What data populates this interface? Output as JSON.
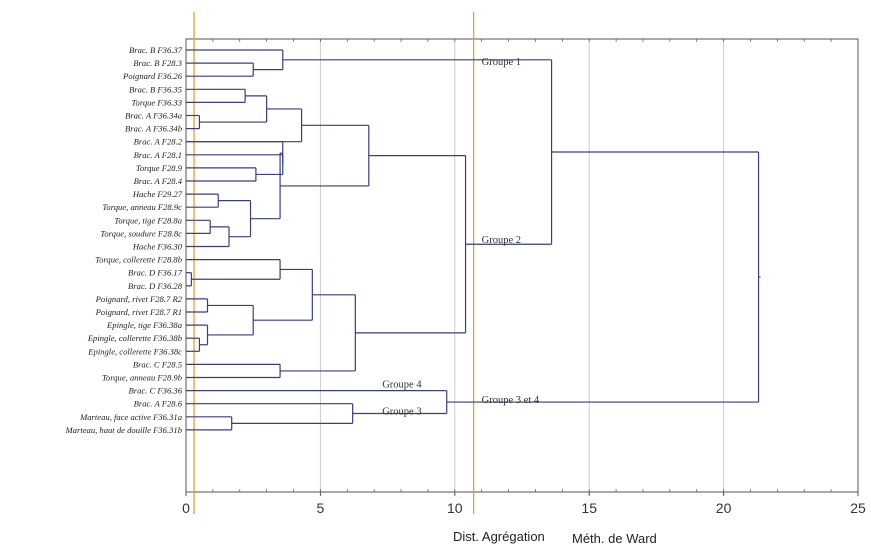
{
  "chart_data": {
    "type": "dendrogram",
    "orientation": "horizontal",
    "x_tick_labels": [
      "0",
      "5",
      "10",
      "15",
      "20",
      "25"
    ],
    "xlim": [
      0,
      25
    ],
    "x_ticks": [
      0,
      5,
      10,
      15,
      20,
      25
    ],
    "xlabel": "Dist. Agrégation",
    "xlabel_method": "Méth. de Ward",
    "leaves": [
      "Brac. B F36.37",
      "Brac. B F28.3",
      "Poignard F36.26",
      "Brac. B F36.35",
      "Torque F36.33",
      "Brac. A F36.34a",
      "Brac. A F36.34b",
      "Brac. A F28.2",
      "Brac. A F28.1",
      "Torque F28.9",
      "Brac. A F28.4",
      "Hache F29.27",
      "Torque, anneau F28.9c",
      "Torque, tige F28.8a",
      "Torque, soudure F28.8c",
      "Hache F36.30",
      "Torque, collerette F28.8b",
      "Brac. D F36.17",
      "Brac. D F36.28",
      "Poignard, rivet F28.7 R2",
      "Poignard, rivet F28.7 R1",
      "Epingle, tige F36.38a",
      "Epingle, collerette F36.38b",
      "Epingle, collerette F36.38c",
      "Brac. C F28.5",
      "Torque, anneau F28.9b",
      "Brac. C F36.36",
      "Brac. A F28.6",
      "Marteau, face active F36.31a",
      "Marteau, haut de douille F36.31b"
    ],
    "merges": [
      {
        "a": "L5",
        "b": "L6",
        "h": 0.5,
        "id": "m1"
      },
      {
        "a": "L17",
        "b": "L18",
        "h": 0.2,
        "id": "m2"
      },
      {
        "a": "L22",
        "b": "L23",
        "h": 0.5,
        "id": "m3"
      },
      {
        "a": "L21",
        "b": "m3",
        "h": 0.8,
        "id": "m4"
      },
      {
        "a": "L19",
        "b": "L20",
        "h": 0.8,
        "id": "m5"
      },
      {
        "a": "L13",
        "b": "L14",
        "h": 0.9,
        "id": "m6"
      },
      {
        "a": "L11",
        "b": "L12",
        "h": 1.2,
        "id": "m7"
      },
      {
        "a": "m6",
        "b": "L15",
        "h": 1.6,
        "id": "m8"
      },
      {
        "a": "L28",
        "b": "L29",
        "h": 1.7,
        "id": "m9"
      },
      {
        "a": "L3",
        "b": "L4",
        "h": 2.2,
        "id": "m10"
      },
      {
        "a": "L9",
        "b": "L10",
        "h": 2.6,
        "id": "m11"
      },
      {
        "a": "L1",
        "b": "L2",
        "h": 2.5,
        "id": "m12"
      },
      {
        "a": "m7",
        "b": "m8",
        "h": 2.4,
        "id": "m13"
      },
      {
        "a": "m5",
        "b": "m4",
        "h": 2.5,
        "id": "m14"
      },
      {
        "a": "m10",
        "b": "m1",
        "h": 3.0,
        "id": "m15"
      },
      {
        "a": "L16",
        "b": "m2",
        "h": 3.5,
        "id": "m16"
      },
      {
        "a": "L24",
        "b": "L25",
        "h": 3.5,
        "id": "m17"
      },
      {
        "a": "L0",
        "b": "m12",
        "h": 3.6,
        "id": "m18"
      },
      {
        "a": "L8",
        "b": "m11",
        "h": 3.6,
        "id": "m19"
      },
      {
        "a": "L7",
        "b": "m19",
        "h": 3.6,
        "id": "m20"
      },
      {
        "a": "m20",
        "b": "m13",
        "h": 3.5,
        "id": "m21"
      },
      {
        "a": "m15",
        "b": "L7x",
        "h": 4.3,
        "id": "m22"
      },
      {
        "a": "m16",
        "b": "m14",
        "h": 4.7,
        "id": "m23"
      },
      {
        "a": "m23",
        "b": "m17",
        "h": 6.3,
        "id": "m24"
      },
      {
        "a": "L27",
        "b": "m9",
        "h": 6.2,
        "id": "m25"
      },
      {
        "a": "m22",
        "b": "m21",
        "h": 6.8,
        "id": "m26"
      },
      {
        "a": "L26",
        "b": "m25",
        "h": 9.7,
        "id": "m27"
      },
      {
        "a": "m26",
        "b": "m24",
        "h": 10.4,
        "id": "m28"
      },
      {
        "a": "m18",
        "b": "m28",
        "h": 13.6,
        "id": "m29"
      },
      {
        "a": "m29",
        "b": "m27",
        "h": 21.3,
        "id": "m30"
      }
    ],
    "group_labels": [
      {
        "text": "Groupe 1",
        "node": "m18"
      },
      {
        "text": "Groupe 2",
        "node": "m28"
      },
      {
        "text": "Groupe 4",
        "node": "L26"
      },
      {
        "text": "Groupe 3",
        "node": "m25"
      },
      {
        "text": "Groupe 3 et 4",
        "node": "m27"
      }
    ],
    "reference_lines_x": [
      0.3,
      10.7
    ],
    "colors": {
      "tree": "#3a3f78",
      "frame": "#555555",
      "grid": "#c8ccd6",
      "reference": "#e0a23a"
    }
  }
}
